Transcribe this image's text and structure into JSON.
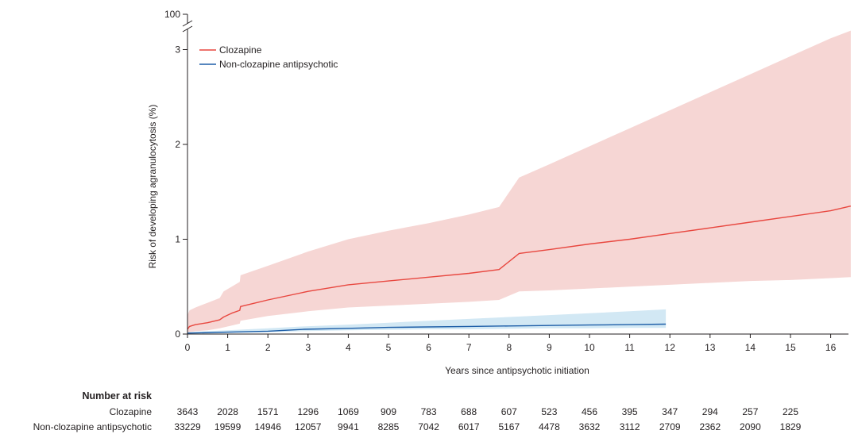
{
  "chart_data": {
    "type": "line",
    "title": "",
    "xlabel": "Years since antipsychotic initiation",
    "ylabel": "Risk of developing agranulocytosis (%)",
    "xlim": [
      0,
      16.5
    ],
    "ylim": [
      0,
      3.2
    ],
    "x_ticks": [
      0,
      1,
      2,
      3,
      4,
      5,
      6,
      7,
      8,
      9,
      10,
      11,
      12,
      13,
      14,
      15,
      16
    ],
    "y_ticks": [
      0,
      1,
      2,
      3
    ],
    "y_break_label": "100",
    "legend_position": "top-left",
    "series": [
      {
        "name": "Clozapine",
        "color": "#e8473f",
        "band_color": "#f6d6d4",
        "x": [
          0,
          0.05,
          0.2,
          0.5,
          0.8,
          0.9,
          1.1,
          1.3,
          1.32,
          2,
          3,
          4,
          5,
          6,
          7,
          7.75,
          8.25,
          9,
          10,
          11,
          12,
          13,
          14,
          15,
          16,
          16.5
        ],
        "y": [
          0.05,
          0.08,
          0.1,
          0.12,
          0.15,
          0.18,
          0.22,
          0.25,
          0.29,
          0.36,
          0.45,
          0.52,
          0.56,
          0.6,
          0.64,
          0.68,
          0.85,
          0.89,
          0.95,
          1.0,
          1.06,
          1.12,
          1.18,
          1.24,
          1.3,
          1.35
        ],
        "lower": [
          0.0,
          0.02,
          0.03,
          0.04,
          0.06,
          0.07,
          0.09,
          0.11,
          0.14,
          0.19,
          0.24,
          0.28,
          0.3,
          0.32,
          0.34,
          0.36,
          0.45,
          0.46,
          0.48,
          0.5,
          0.52,
          0.54,
          0.56,
          0.57,
          0.59,
          0.6
        ],
        "upper": [
          0.2,
          0.25,
          0.28,
          0.33,
          0.38,
          0.45,
          0.5,
          0.55,
          0.62,
          0.72,
          0.87,
          1.0,
          1.09,
          1.17,
          1.26,
          1.34,
          1.65,
          1.79,
          1.98,
          2.17,
          2.36,
          2.55,
          2.74,
          2.93,
          3.12,
          3.2
        ]
      },
      {
        "name": "Non-clozapine antipsychotic",
        "color": "#1f5fa8",
        "band_color": "#d2e8f4",
        "x": [
          0,
          1,
          2,
          2.9,
          4,
          5,
          6,
          7,
          8,
          9,
          10,
          11,
          11.9
        ],
        "y": [
          0.01,
          0.02,
          0.03,
          0.05,
          0.06,
          0.07,
          0.075,
          0.08,
          0.085,
          0.09,
          0.095,
          0.1,
          0.105
        ],
        "lower": [
          0.0,
          0.01,
          0.02,
          0.03,
          0.04,
          0.045,
          0.05,
          0.05,
          0.055,
          0.06,
          0.06,
          0.065,
          0.065
        ],
        "upper": [
          0.02,
          0.04,
          0.06,
          0.08,
          0.1,
          0.12,
          0.14,
          0.16,
          0.18,
          0.2,
          0.22,
          0.24,
          0.26
        ]
      }
    ],
    "number_at_risk": {
      "title": "Number at risk",
      "rows": [
        {
          "label": "Clozapine",
          "times": [
            0,
            1,
            2,
            3,
            4,
            5,
            6,
            7,
            8,
            9,
            10,
            11,
            12,
            13,
            14,
            15
          ],
          "values": [
            "3643",
            "2028",
            "1571",
            "1296",
            "1069",
            "909",
            "783",
            "688",
            "607",
            "523",
            "456",
            "395",
            "347",
            "294",
            "257",
            "225"
          ]
        },
        {
          "label": "Non-clozapine antipsychotic",
          "times": [
            0,
            1,
            2,
            3,
            4,
            5,
            6,
            7,
            8,
            9,
            10,
            11,
            12,
            13,
            14,
            15
          ],
          "values": [
            "33229",
            "19599",
            "14946",
            "12057",
            "9941",
            "8285",
            "7042",
            "6017",
            "5167",
            "4478",
            "3632",
            "3112",
            "2709",
            "2362",
            "2090",
            "1829"
          ]
        }
      ]
    }
  }
}
